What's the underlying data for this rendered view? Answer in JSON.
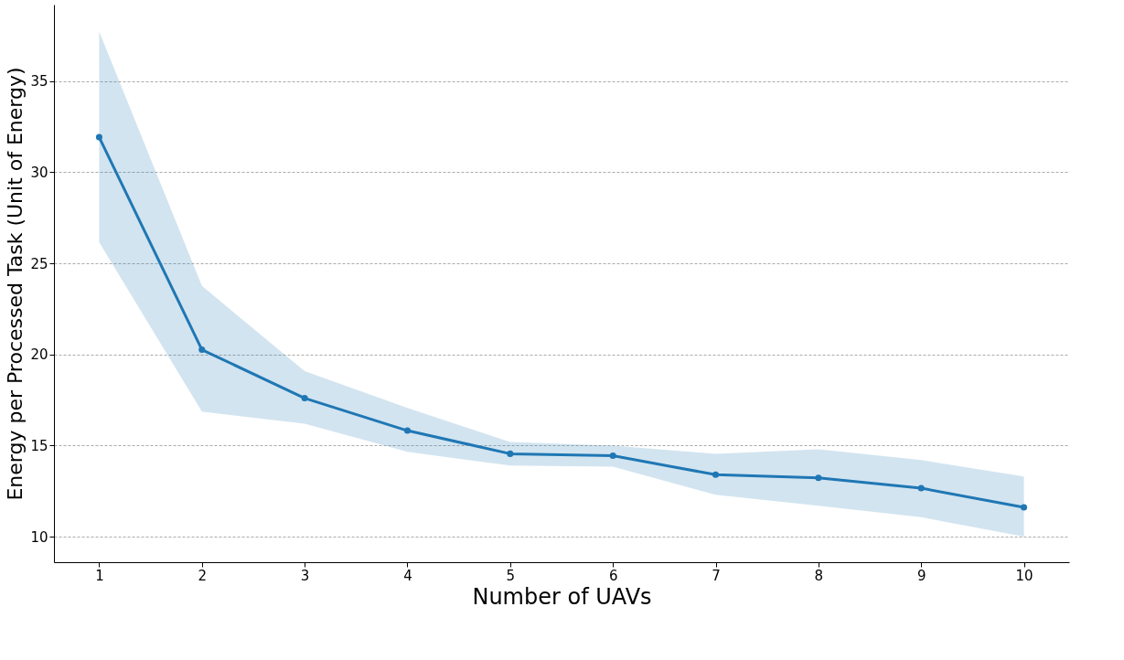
{
  "chart_data": {
    "type": "line",
    "xlabel": "Number of UAVs",
    "ylabel": "Energy per Processed Task (Unit of Energy)",
    "x": [
      1,
      2,
      3,
      4,
      5,
      6,
      7,
      8,
      9,
      10
    ],
    "series": [
      {
        "color": "#1f77b4",
        "values": [
          31.92,
          20.26,
          17.6,
          15.82,
          14.55,
          14.44,
          13.4,
          13.23,
          12.66,
          11.61
        ],
        "lower": [
          26.16,
          16.86,
          16.2,
          14.66,
          13.9,
          13.84,
          12.3,
          11.7,
          11.07,
          10.0
        ],
        "upper": [
          37.72,
          23.76,
          19.08,
          17.06,
          15.2,
          15.0,
          14.55,
          14.8,
          14.2,
          13.3
        ]
      }
    ],
    "xlim": [
      0.56,
      10.44
    ],
    "ylim": [
      8.6,
      39.2
    ],
    "xticks": [
      1,
      2,
      3,
      4,
      5,
      6,
      7,
      8,
      9,
      10
    ],
    "yticks": [
      10,
      15,
      20,
      25,
      30,
      35
    ],
    "grid": "y",
    "marker": "circle",
    "line_style": "solid"
  }
}
